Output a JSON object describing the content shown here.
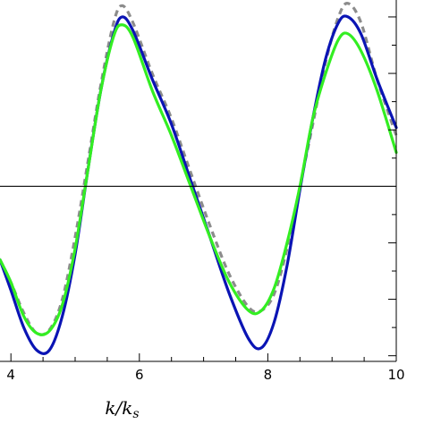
{
  "chart_data": {
    "type": "line",
    "title": "",
    "xlabel": "k/k_s",
    "xlabel_main": "k/k",
    "xlabel_sub": "s",
    "ylabel": "",
    "xlim": [
      3.83,
      10.0
    ],
    "ylim": [
      -1.55,
      1.65
    ],
    "x_ticks": [
      4,
      6,
      8,
      10
    ],
    "x_tick_labels": [
      "4",
      "6",
      "8",
      "10"
    ],
    "x_minor_step": 0.5,
    "y_tick_values": [
      -1.5,
      -1.25,
      -1.0,
      -0.75,
      -0.5,
      -0.25,
      0.25,
      0.5,
      0.75,
      1.0,
      1.25,
      1.5
    ],
    "zero_line": true,
    "grid": false,
    "legend": "none",
    "series": [
      {
        "color": "#8c8c8c",
        "style": "dashed",
        "x": [
          3.83,
          4.0,
          4.2,
          4.4,
          4.6,
          4.8,
          5.0,
          5.2,
          5.4,
          5.6,
          5.73,
          5.9,
          6.2,
          6.5,
          6.8,
          7.1,
          7.4,
          7.7,
          7.9,
          8.1,
          8.3,
          8.5,
          8.7,
          8.9,
          9.1,
          9.25,
          9.45,
          9.7,
          10.0
        ],
        "y": [
          -0.65,
          -0.85,
          -1.12,
          -1.3,
          -1.27,
          -1.0,
          -0.45,
          0.22,
          0.9,
          1.45,
          1.6,
          1.45,
          1.0,
          0.6,
          0.12,
          -0.35,
          -0.78,
          -1.07,
          -1.1,
          -0.95,
          -0.55,
          0.0,
          0.55,
          1.1,
          1.5,
          1.62,
          1.45,
          0.95,
          0.45
        ]
      },
      {
        "color": "#0a14b4",
        "style": "solid",
        "x": [
          3.83,
          4.0,
          4.2,
          4.4,
          4.6,
          4.8,
          5.0,
          5.2,
          5.4,
          5.6,
          5.73,
          5.9,
          6.2,
          6.5,
          6.8,
          7.1,
          7.4,
          7.7,
          7.9,
          8.1,
          8.3,
          8.5,
          8.7,
          8.9,
          9.1,
          9.25,
          9.45,
          9.7,
          10.0
        ],
        "y": [
          -0.65,
          -0.92,
          -1.25,
          -1.45,
          -1.45,
          -1.15,
          -0.6,
          0.15,
          0.85,
          1.35,
          1.5,
          1.38,
          0.95,
          0.55,
          0.05,
          -0.45,
          -0.95,
          -1.35,
          -1.43,
          -1.2,
          -0.7,
          -0.03,
          0.6,
          1.13,
          1.45,
          1.5,
          1.35,
          0.95,
          0.52
        ]
      },
      {
        "color": "#33ee22",
        "style": "solid",
        "x": [
          3.83,
          4.0,
          4.2,
          4.4,
          4.6,
          4.8,
          5.0,
          5.2,
          5.4,
          5.6,
          5.73,
          5.9,
          6.2,
          6.5,
          6.8,
          7.1,
          7.4,
          7.7,
          7.9,
          8.1,
          8.3,
          8.5,
          8.7,
          8.9,
          9.1,
          9.25,
          9.45,
          9.7,
          10.0
        ],
        "y": [
          -0.65,
          -0.85,
          -1.15,
          -1.3,
          -1.28,
          -1.05,
          -0.55,
          0.15,
          0.85,
          1.33,
          1.43,
          1.32,
          0.85,
          0.45,
          0.0,
          -0.45,
          -0.85,
          -1.1,
          -1.1,
          -0.9,
          -0.5,
          0.0,
          0.6,
          1.0,
          1.3,
          1.35,
          1.2,
          0.85,
          0.3
        ]
      }
    ]
  }
}
